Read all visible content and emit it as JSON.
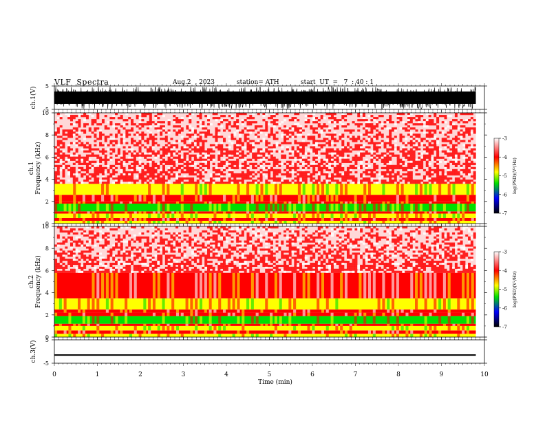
{
  "header": {
    "title": "VLF  Spectra",
    "date": "Aug.2  , 2023",
    "station": "station= ATH",
    "start": "start  UT  =   7  : 40 : 1"
  },
  "chart_data": [
    {
      "type": "line",
      "name": "ch1-waveform",
      "ylabel": "ch.1(V)",
      "ylim": [
        -5,
        5
      ],
      "yticks": [
        "5",
        "-5"
      ],
      "x_range_min": [
        0,
        9.8
      ],
      "amplitude_v": 4.8
    },
    {
      "type": "heatmap",
      "name": "ch1-spectrogram",
      "ylabel_line1": "ch.1",
      "ylabel_line2": "Frequency  (kHz)",
      "ylim": [
        0,
        10
      ],
      "yticks": [
        "0",
        "2",
        "4",
        "6",
        "8",
        "10"
      ],
      "x_range_min": [
        0,
        9.8
      ],
      "bands": [
        {
          "f": [
            0.0,
            0.25
          ],
          "level": "yellow"
        },
        {
          "f": [
            0.25,
            0.5
          ],
          "level": "red"
        },
        {
          "f": [
            0.5,
            0.9
          ],
          "level": "yellow"
        },
        {
          "f": [
            0.9,
            1.1
          ],
          "level": "red"
        },
        {
          "f": [
            1.1,
            1.8
          ],
          "level": "green"
        },
        {
          "f": [
            1.8,
            2.0
          ],
          "level": "red"
        },
        {
          "f": [
            2.0,
            2.6
          ],
          "level": "red"
        },
        {
          "f": [
            2.6,
            3.6
          ],
          "level": "yellow"
        },
        {
          "f": [
            3.6,
            10.0
          ],
          "level": "speckle"
        }
      ],
      "colorbar": {
        "label": "log(PSD)(V²/Hz)",
        "ticks": [
          "-3",
          "-4",
          "-5",
          "-6",
          "-7"
        ],
        "range": [
          -7,
          -3
        ]
      }
    },
    {
      "type": "heatmap",
      "name": "ch2-spectrogram",
      "ylabel_line1": "ch.2",
      "ylabel_line2": "Frequency  (kHz)",
      "ylim": [
        0,
        10
      ],
      "yticks": [
        "0",
        "2",
        "4",
        "6",
        "8",
        "10"
      ],
      "x_range_min": [
        0,
        9.8
      ],
      "bands": [
        {
          "f": [
            0.0,
            0.3
          ],
          "level": "yellow"
        },
        {
          "f": [
            0.3,
            0.6
          ],
          "level": "red"
        },
        {
          "f": [
            0.6,
            1.0
          ],
          "level": "yellow"
        },
        {
          "f": [
            1.0,
            1.2
          ],
          "level": "red"
        },
        {
          "f": [
            1.2,
            1.9
          ],
          "level": "green"
        },
        {
          "f": [
            1.9,
            2.2
          ],
          "level": "red"
        },
        {
          "f": [
            2.2,
            2.5
          ],
          "level": "red"
        },
        {
          "f": [
            2.5,
            3.5
          ],
          "level": "yellow"
        },
        {
          "f": [
            3.5,
            5.8
          ],
          "level": "red"
        },
        {
          "f": [
            5.8,
            10.0
          ],
          "level": "speckle"
        }
      ],
      "colorbar": {
        "label": "log(PSD)(V²/Hz)",
        "ticks": [
          "-3",
          "-4",
          "-5",
          "-6",
          "-7"
        ],
        "range": [
          -7,
          -3
        ]
      }
    },
    {
      "type": "line",
      "name": "ch3-waveform",
      "ylabel": "ch.3(V)",
      "ylim": [
        -5,
        5
      ],
      "yticks": [
        "5",
        "-5"
      ],
      "x_range_min": [
        0,
        9.8
      ],
      "baseline_v": -1.5,
      "amplitude_v": 0.3
    }
  ],
  "xaxis": {
    "label": "Time  (min)",
    "ticks": [
      "0",
      "1",
      "2",
      "3",
      "4",
      "5",
      "6",
      "7",
      "8",
      "9",
      "10"
    ],
    "range": [
      0,
      10
    ]
  },
  "colors": {
    "white": "#ffffff",
    "red": "#ff0000",
    "yellow": "#ffff00",
    "green": "#00e000",
    "blue": "#0000ff",
    "black": "#000000"
  }
}
